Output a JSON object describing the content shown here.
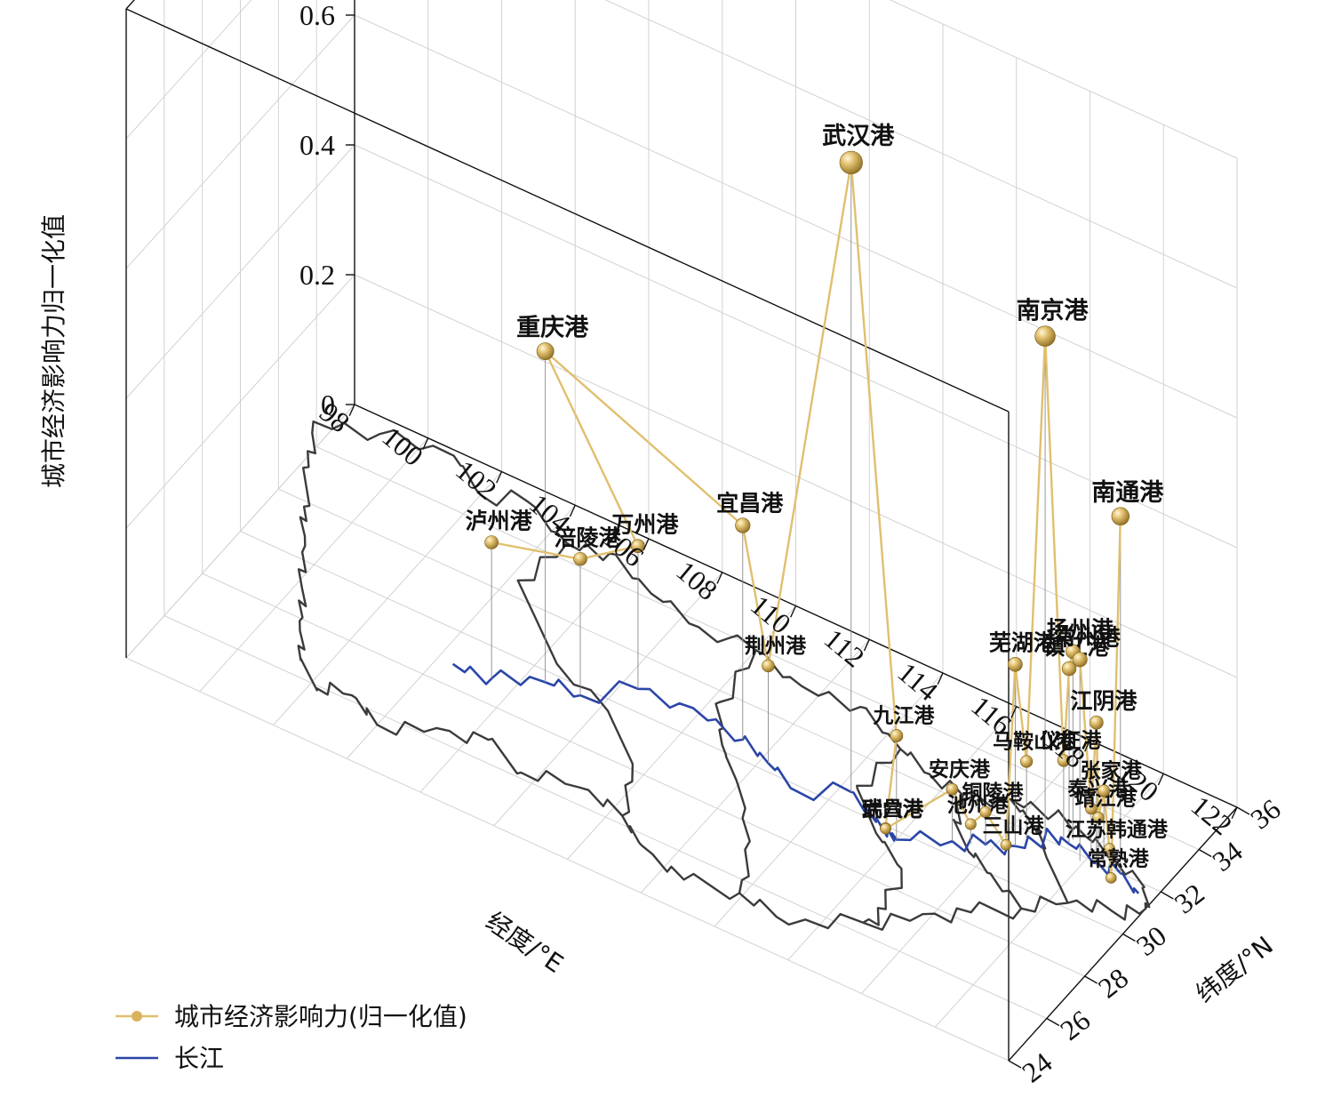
{
  "chart_data": {
    "type": "scatter3d",
    "zlabel": "城市经济影响力归一化值",
    "xlabel": "经度/°E",
    "ylabel": "纬度/°N",
    "zlim": [
      0,
      1.0
    ],
    "zticks": [
      "0",
      "0.2",
      "0.4",
      "0.6",
      "0.8",
      "1.0"
    ],
    "xlim": [
      98,
      122
    ],
    "xticks": [
      "98",
      "100",
      "102",
      "104",
      "106",
      "108",
      "110",
      "112",
      "114",
      "116",
      "118",
      "120",
      "122"
    ],
    "ylim": [
      24,
      36
    ],
    "yticks": [
      "24",
      "26",
      "28",
      "30",
      "32",
      "34",
      "36"
    ],
    "grid": true,
    "legend": {
      "placement": "bottom-left",
      "items": [
        {
          "label": "城市经济影响力(归一化值)",
          "color": "#e0bf6e"
        },
        {
          "label": "长江",
          "color": "#2b46a8"
        }
      ]
    },
    "series": [
      {
        "name": "城市经济影响力(归一化值)",
        "points": [
          {
            "name": "泸州港",
            "lon": 105.4,
            "lat": 28.9,
            "value": 0.21
          },
          {
            "name": "涪陵港",
            "lon": 107.4,
            "lat": 29.7,
            "value": 0.21
          },
          {
            "name": "万州港",
            "lon": 108.4,
            "lat": 30.8,
            "value": 0.22
          },
          {
            "name": "重庆港",
            "lon": 106.5,
            "lat": 29.6,
            "value": 0.51
          },
          {
            "name": "宜昌港",
            "lon": 111.3,
            "lat": 30.7,
            "value": 0.33
          },
          {
            "name": "荆州港",
            "lon": 112.2,
            "lat": 30.3,
            "value": 0.15
          },
          {
            "name": "武汉港",
            "lon": 114.3,
            "lat": 30.6,
            "value": 0.97
          },
          {
            "name": "九江港",
            "lon": 116.0,
            "lat": 29.7,
            "value": 0.16
          },
          {
            "name": "瑞昌港",
            "lon": 115.7,
            "lat": 29.7,
            "value": 0.01
          },
          {
            "name": "武穴港",
            "lon": 115.6,
            "lat": 29.9,
            "value": 0.0
          },
          {
            "name": "安庆港",
            "lon": 117.1,
            "lat": 30.5,
            "value": 0.08
          },
          {
            "name": "池州港",
            "lon": 117.5,
            "lat": 30.7,
            "value": 0.03
          },
          {
            "name": "铜陵港",
            "lon": 117.8,
            "lat": 30.9,
            "value": 0.05
          },
          {
            "name": "三山港",
            "lon": 118.2,
            "lat": 31.2,
            "value": 0.0
          },
          {
            "name": "芜湖港",
            "lon": 118.4,
            "lat": 31.3,
            "value": 0.28
          },
          {
            "name": "马鞍山港",
            "lon": 118.5,
            "lat": 31.7,
            "value": 0.12
          },
          {
            "name": "南京港",
            "lon": 118.8,
            "lat": 32.1,
            "value": 0.77
          },
          {
            "name": "仪征港",
            "lon": 119.2,
            "lat": 32.3,
            "value": 0.12
          },
          {
            "name": "镇江港",
            "lon": 119.4,
            "lat": 32.2,
            "value": 0.27
          },
          {
            "name": "扬州港",
            "lon": 119.4,
            "lat": 32.4,
            "value": 0.29
          },
          {
            "name": "常州港",
            "lon": 119.9,
            "lat": 31.8,
            "value": 0.31
          },
          {
            "name": "泰兴港",
            "lon": 120.0,
            "lat": 32.2,
            "value": 0.07
          },
          {
            "name": "江阴港",
            "lon": 120.3,
            "lat": 31.9,
            "value": 0.22
          },
          {
            "name": "靖江港",
            "lon": 120.3,
            "lat": 32.0,
            "value": 0.07
          },
          {
            "name": "张家港",
            "lon": 120.5,
            "lat": 31.9,
            "value": 0.12
          },
          {
            "name": "江苏韩通港",
            "lon": 120.6,
            "lat": 32.0,
            "value": 0.03
          },
          {
            "name": "常熟港",
            "lon": 120.8,
            "lat": 31.7,
            "value": 0.0
          },
          {
            "name": "南通港",
            "lon": 120.9,
            "lat": 32.0,
            "value": 0.55
          }
        ]
      },
      {
        "name": "长江",
        "type": "line"
      }
    ]
  }
}
